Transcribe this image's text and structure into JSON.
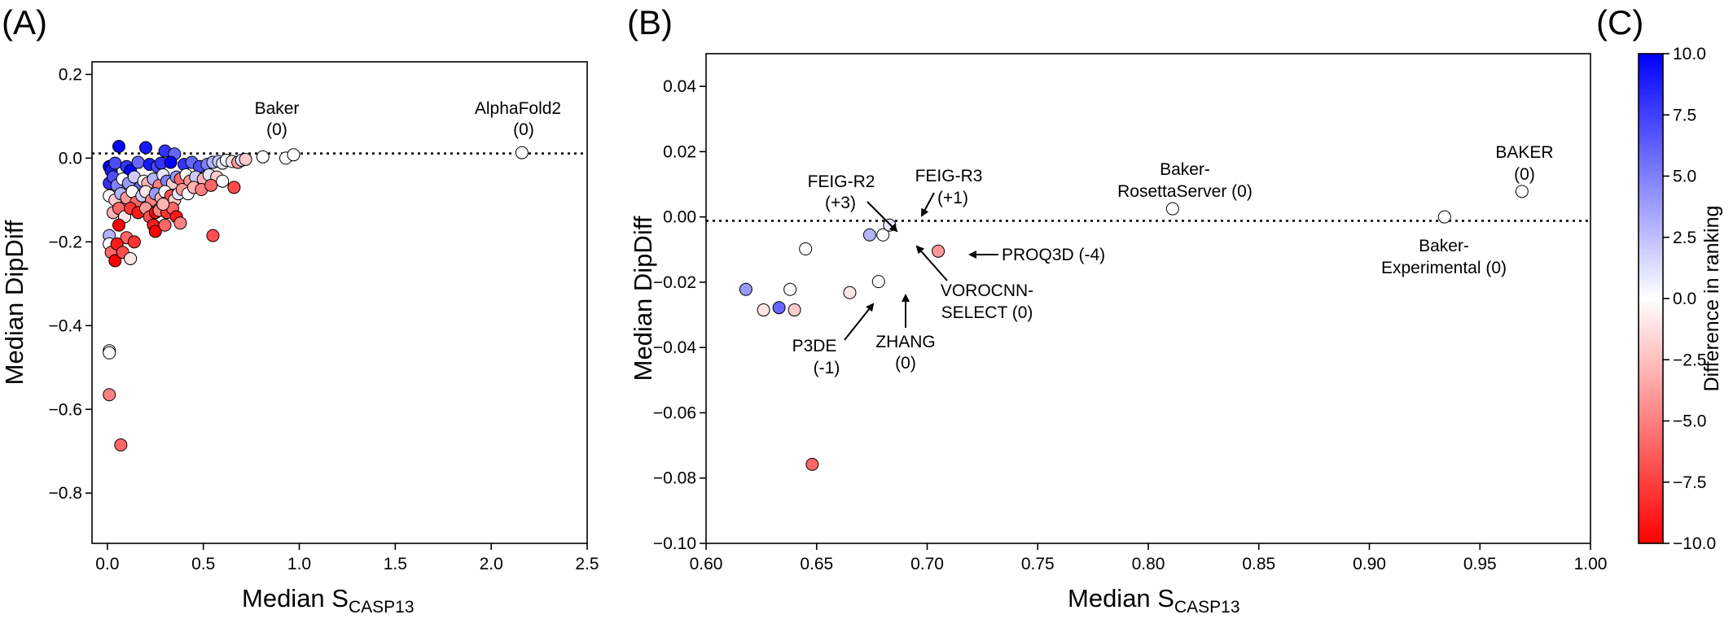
{
  "panels": {
    "A": {
      "letter": "(A)"
    },
    "B": {
      "letter": "(B)"
    },
    "C": {
      "letter": "(C)"
    }
  },
  "chart_data": [
    {
      "type": "scatter",
      "panel": "A",
      "xlabel_main": "Median S",
      "xlabel_sub": "CASP13",
      "ylabel": "Median DipDiff",
      "xlim": [
        -0.08,
        2.5
      ],
      "ylim": [
        -0.92,
        0.23
      ],
      "xticks": [
        0.0,
        0.5,
        1.0,
        1.5,
        2.0,
        2.5
      ],
      "xtick_labels": [
        "0.0",
        "0.5",
        "1.0",
        "1.5",
        "2.0",
        "2.5"
      ],
      "yticks": [
        0.2,
        0.0,
        -0.2,
        -0.4,
        -0.6,
        -0.8
      ],
      "ytick_labels": [
        "0.2",
        "0.0",
        "−0.2",
        "−0.4",
        "−0.6",
        "−0.8"
      ],
      "reference_line_y": 0.0,
      "color_by": "difference_in_ranking",
      "points": [
        {
          "x": 0.06,
          "y": 0.028,
          "c": 10
        },
        {
          "x": 0.2,
          "y": 0.025,
          "c": 9
        },
        {
          "x": 0.3,
          "y": 0.017,
          "c": 8
        },
        {
          "x": 0.35,
          "y": 0.01,
          "c": 6
        },
        {
          "x": 0.01,
          "y": -0.02,
          "c": 10
        },
        {
          "x": 0.02,
          "y": -0.03,
          "c": 9
        },
        {
          "x": 0.04,
          "y": -0.012,
          "c": 7
        },
        {
          "x": 0.1,
          "y": -0.02,
          "c": 8
        },
        {
          "x": 0.12,
          "y": -0.03,
          "c": 10
        },
        {
          "x": 0.16,
          "y": -0.01,
          "c": 6
        },
        {
          "x": 0.22,
          "y": -0.015,
          "c": 9
        },
        {
          "x": 0.26,
          "y": -0.02,
          "c": 7
        },
        {
          "x": 0.28,
          "y": -0.012,
          "c": 8
        },
        {
          "x": 0.33,
          "y": -0.01,
          "c": 10
        },
        {
          "x": 0.4,
          "y": -0.015,
          "c": 8
        },
        {
          "x": 0.44,
          "y": -0.01,
          "c": 6
        },
        {
          "x": 0.48,
          "y": -0.02,
          "c": 7
        },
        {
          "x": 0.52,
          "y": -0.015,
          "c": 5
        },
        {
          "x": 0.55,
          "y": -0.01,
          "c": 3
        },
        {
          "x": 0.58,
          "y": -0.008,
          "c": 2
        },
        {
          "x": 0.6,
          "y": -0.012,
          "c": 1
        },
        {
          "x": 0.62,
          "y": -0.005,
          "c": 0
        },
        {
          "x": 0.65,
          "y": -0.008,
          "c": -1
        },
        {
          "x": 0.68,
          "y": -0.01,
          "c": -4
        },
        {
          "x": 0.7,
          "y": -0.005,
          "c": 1
        },
        {
          "x": 0.72,
          "y": -0.003,
          "c": -2
        },
        {
          "x": 0.01,
          "y": -0.06,
          "c": 8
        },
        {
          "x": 0.03,
          "y": -0.045,
          "c": 7
        },
        {
          "x": 0.05,
          "y": -0.065,
          "c": 5
        },
        {
          "x": 0.08,
          "y": -0.05,
          "c": 0
        },
        {
          "x": 0.11,
          "y": -0.06,
          "c": 4
        },
        {
          "x": 0.14,
          "y": -0.045,
          "c": 2
        },
        {
          "x": 0.17,
          "y": -0.07,
          "c": 6
        },
        {
          "x": 0.19,
          "y": -0.055,
          "c": 0
        },
        {
          "x": 0.21,
          "y": -0.06,
          "c": -3
        },
        {
          "x": 0.24,
          "y": -0.05,
          "c": 3
        },
        {
          "x": 0.27,
          "y": -0.065,
          "c": -5
        },
        {
          "x": 0.29,
          "y": -0.04,
          "c": 1
        },
        {
          "x": 0.31,
          "y": -0.055,
          "c": 5
        },
        {
          "x": 0.34,
          "y": -0.06,
          "c": -2
        },
        {
          "x": 0.36,
          "y": -0.045,
          "c": 4
        },
        {
          "x": 0.38,
          "y": -0.05,
          "c": -6
        },
        {
          "x": 0.41,
          "y": -0.04,
          "c": 0
        },
        {
          "x": 0.43,
          "y": -0.055,
          "c": -4
        },
        {
          "x": 0.46,
          "y": -0.045,
          "c": 2
        },
        {
          "x": 0.5,
          "y": -0.05,
          "c": -3
        },
        {
          "x": 0.53,
          "y": -0.04,
          "c": 1
        },
        {
          "x": 0.57,
          "y": -0.045,
          "c": -2
        },
        {
          "x": 0.01,
          "y": -0.09,
          "c": 0
        },
        {
          "x": 0.04,
          "y": -0.1,
          "c": -2
        },
        {
          "x": 0.07,
          "y": -0.085,
          "c": 3
        },
        {
          "x": 0.1,
          "y": -0.095,
          "c": -4
        },
        {
          "x": 0.13,
          "y": -0.08,
          "c": 0
        },
        {
          "x": 0.15,
          "y": -0.105,
          "c": -6
        },
        {
          "x": 0.18,
          "y": -0.09,
          "c": 2
        },
        {
          "x": 0.2,
          "y": -0.08,
          "c": -1
        },
        {
          "x": 0.23,
          "y": -0.1,
          "c": -5
        },
        {
          "x": 0.25,
          "y": -0.085,
          "c": 4
        },
        {
          "x": 0.28,
          "y": -0.095,
          "c": -3
        },
        {
          "x": 0.3,
          "y": -0.08,
          "c": 0
        },
        {
          "x": 0.33,
          "y": -0.09,
          "c": -7
        },
        {
          "x": 0.35,
          "y": -0.1,
          "c": -2
        },
        {
          "x": 0.37,
          "y": -0.085,
          "c": 1
        },
        {
          "x": 0.39,
          "y": -0.075,
          "c": -4
        },
        {
          "x": 0.42,
          "y": -0.085,
          "c": 0
        },
        {
          "x": 0.45,
          "y": -0.07,
          "c": -3
        },
        {
          "x": 0.49,
          "y": -0.075,
          "c": -5
        },
        {
          "x": 0.54,
          "y": -0.065,
          "c": -6
        },
        {
          "x": 0.6,
          "y": -0.055,
          "c": 0
        },
        {
          "x": 0.66,
          "y": -0.07,
          "c": -7
        },
        {
          "x": 0.03,
          "y": -0.13,
          "c": -3
        },
        {
          "x": 0.06,
          "y": -0.12,
          "c": -6
        },
        {
          "x": 0.09,
          "y": -0.14,
          "c": -1
        },
        {
          "x": 0.12,
          "y": -0.12,
          "c": -8
        },
        {
          "x": 0.16,
          "y": -0.13,
          "c": -9
        },
        {
          "x": 0.2,
          "y": -0.12,
          "c": -4
        },
        {
          "x": 0.22,
          "y": -0.14,
          "c": -7
        },
        {
          "x": 0.25,
          "y": -0.13,
          "c": -10
        },
        {
          "x": 0.27,
          "y": -0.125,
          "c": -5
        },
        {
          "x": 0.31,
          "y": -0.13,
          "c": -8
        },
        {
          "x": 0.34,
          "y": -0.12,
          "c": -6
        },
        {
          "x": 0.36,
          "y": -0.14,
          "c": -9
        },
        {
          "x": 0.29,
          "y": -0.11,
          "c": -3
        },
        {
          "x": 0.24,
          "y": -0.16,
          "c": -9
        },
        {
          "x": 0.25,
          "y": -0.175,
          "c": -10
        },
        {
          "x": 0.3,
          "y": -0.16,
          "c": -6
        },
        {
          "x": 0.38,
          "y": -0.155,
          "c": -5
        },
        {
          "x": 0.06,
          "y": -0.16,
          "c": -10
        },
        {
          "x": 0.1,
          "y": -0.19,
          "c": -6
        },
        {
          "x": 0.14,
          "y": -0.2,
          "c": -8
        },
        {
          "x": 0.55,
          "y": -0.185,
          "c": -7
        },
        {
          "x": 0.01,
          "y": -0.185,
          "c": 3
        },
        {
          "x": 0.01,
          "y": -0.205,
          "c": 0
        },
        {
          "x": 0.02,
          "y": -0.225,
          "c": -6
        },
        {
          "x": 0.05,
          "y": -0.205,
          "c": -9
        },
        {
          "x": 0.04,
          "y": -0.245,
          "c": -10
        },
        {
          "x": 0.08,
          "y": -0.225,
          "c": -7
        },
        {
          "x": 0.12,
          "y": -0.24,
          "c": -1
        },
        {
          "x": 0.01,
          "y": -0.46,
          "c": 0
        },
        {
          "x": 0.01,
          "y": -0.465,
          "c": 0
        },
        {
          "x": 0.01,
          "y": -0.565,
          "c": -5
        },
        {
          "x": 0.07,
          "y": -0.685,
          "c": -6
        },
        {
          "x": 0.81,
          "y": 0.003,
          "c": 0
        },
        {
          "x": 0.93,
          "y": 0.0,
          "c": 0
        },
        {
          "x": 0.97,
          "y": 0.008,
          "c": 0
        },
        {
          "x": 2.16,
          "y": 0.013,
          "c": 0
        }
      ],
      "annotations": [
        {
          "lines": [
            "Baker",
            "(0)"
          ],
          "x": 0.81,
          "y": 0.003
        },
        {
          "lines": [
            "AlphaFold2",
            "(0)"
          ],
          "x": 2.16,
          "y": 0.013
        }
      ]
    },
    {
      "type": "scatter",
      "panel": "B",
      "xlabel_main": "Median S",
      "xlabel_sub": "CASP13",
      "ylabel": "Median DipDiff",
      "xlim": [
        0.6,
        1.0
      ],
      "ylim": [
        -0.1,
        0.05
      ],
      "xticks": [
        0.6,
        0.65,
        0.7,
        0.75,
        0.8,
        0.85,
        0.9,
        0.95,
        1.0
      ],
      "xtick_labels": [
        "0.60",
        "0.65",
        "0.70",
        "0.75",
        "0.80",
        "0.85",
        "0.90",
        "0.95",
        "1.00"
      ],
      "yticks": [
        0.04,
        0.02,
        0.0,
        -0.02,
        -0.04,
        -0.06,
        -0.08,
        -0.1
      ],
      "ytick_labels": [
        "0.04",
        "0.02",
        "0.00",
        "−0.02",
        "−0.04",
        "−0.06",
        "−0.08",
        "−0.10"
      ],
      "reference_line_y": 0.0,
      "color_by": "difference_in_ranking",
      "points": [
        {
          "x": 0.645,
          "y": -0.0098,
          "c": 0
        },
        {
          "x": 0.618,
          "y": -0.0222,
          "c": 4
        },
        {
          "x": 0.626,
          "y": -0.0285,
          "c": -1
        },
        {
          "x": 0.633,
          "y": -0.0278,
          "c": 6
        },
        {
          "x": 0.638,
          "y": -0.0222,
          "c": 0
        },
        {
          "x": 0.64,
          "y": -0.0285,
          "c": -2
        },
        {
          "x": 0.665,
          "y": -0.0232,
          "c": -1
        },
        {
          "x": 0.648,
          "y": -0.0758,
          "c": -6
        },
        {
          "x": 0.674,
          "y": -0.0055,
          "c": 3
        },
        {
          "x": 0.68,
          "y": -0.0055,
          "c": 0
        },
        {
          "x": 0.683,
          "y": -0.0025,
          "c": 1
        },
        {
          "x": 0.678,
          "y": -0.0198,
          "c": 0
        },
        {
          "x": 0.705,
          "y": -0.0105,
          "c": -4
        },
        {
          "x": 0.811,
          "y": 0.0025,
          "c": 0
        },
        {
          "x": 0.934,
          "y": 0.0,
          "c": 0
        },
        {
          "x": 0.969,
          "y": 0.0078,
          "c": 0
        }
      ],
      "annotations": [
        {
          "lines": [
            "FEIG-R2",
            "(+3)"
          ]
        },
        {
          "lines": [
            "FEIG-R3",
            "(+1)"
          ]
        },
        {
          "lines": [
            "Baker-",
            "RosettaServer (0)"
          ]
        },
        {
          "lines": [
            "BAKER",
            "(0)"
          ]
        },
        {
          "lines": [
            "PROQ3D (-4)"
          ]
        },
        {
          "lines": [
            "VOROCNN-",
            "SELECT (0)"
          ]
        },
        {
          "lines": [
            "Baker-",
            "Experimental (0)"
          ]
        },
        {
          "lines": [
            "ZHANG",
            "(0)"
          ]
        },
        {
          "lines": [
            "P3DE",
            "(-1)"
          ]
        }
      ]
    }
  ],
  "colorbar": {
    "label": "Difference in ranking",
    "cmap": "bwr_reversed",
    "range": [
      -10.0,
      10.0
    ],
    "ticks": [
      10.0,
      7.5,
      5.0,
      2.5,
      0.0,
      -2.5,
      -5.0,
      -7.5,
      -10.0
    ],
    "tick_labels": [
      "10.0",
      "7.5",
      "5.0",
      "2.5",
      "0.0",
      "−2.5",
      "−5.0",
      "−7.5",
      "−10.0"
    ],
    "colors": {
      "top": "#0000ff",
      "middle": "#ffffff",
      "bottom": "#ff0000"
    }
  }
}
